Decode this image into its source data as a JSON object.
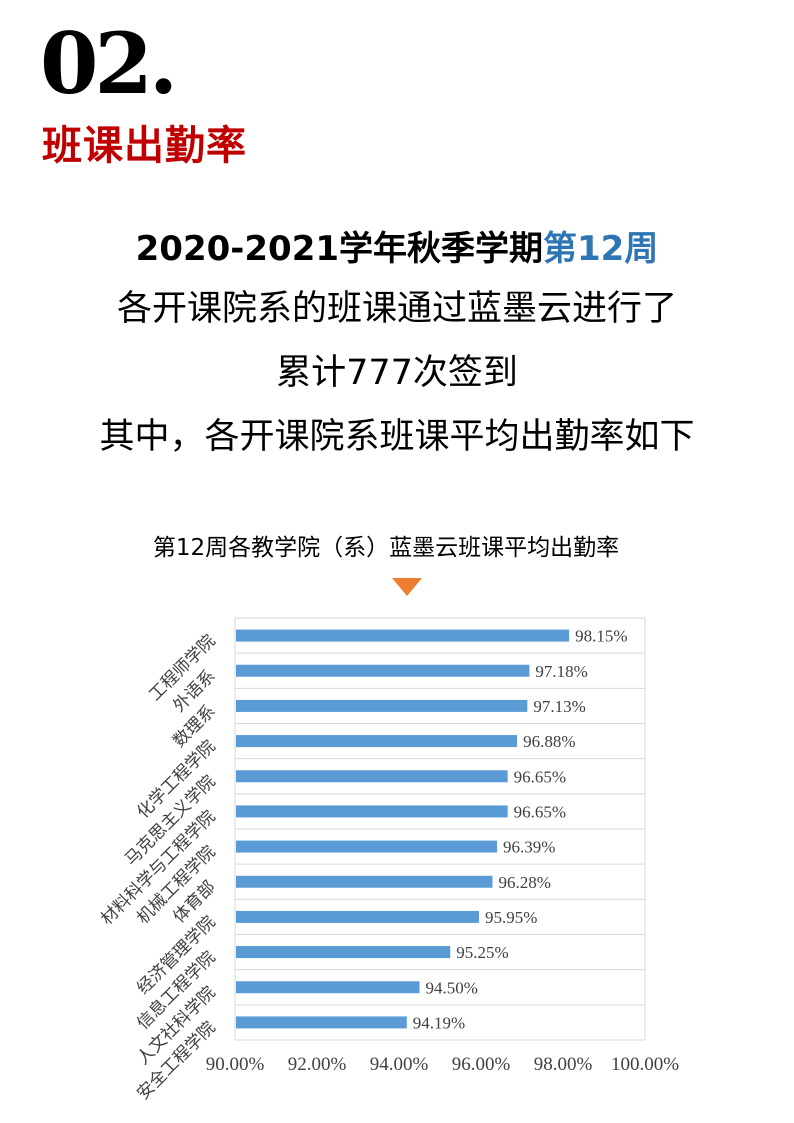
{
  "header": {
    "section_number": "02.",
    "section_title": "班课出勤率"
  },
  "intro": {
    "headline_prefix": "2020-2021学年秋季学期",
    "headline_accent": "第12周",
    "line1": "各开课院系的班课通过蓝墨云进行了",
    "line2": "累计777次签到",
    "line3": "其中，各开课院系班课平均出勤率如下"
  },
  "colors": {
    "accent_red": "#c00000",
    "accent_blue": "#2e75b6",
    "bar": "#5b9bd5",
    "pointer": "#ed7d31"
  },
  "chart_title": "第12周各教学院（系）蓝墨云班课平均出勤率",
  "chart_data": {
    "type": "bar",
    "orientation": "horizontal",
    "categories": [
      "工程师学院",
      "外语系",
      "数理系",
      "化学工程学院",
      "马克思主义学院",
      "材料科学与工程学院",
      "机械工程学院",
      "体育部",
      "经济管理学院",
      "信息工程学院",
      "人文社科学院",
      "安全工程学院"
    ],
    "values": [
      98.15,
      97.18,
      97.13,
      96.88,
      96.65,
      96.65,
      96.39,
      96.28,
      95.95,
      95.25,
      94.5,
      94.19
    ],
    "value_labels": [
      "98.15%",
      "97.18%",
      "97.13%",
      "96.88%",
      "96.65%",
      "96.65%",
      "96.39%",
      "96.28%",
      "95.95%",
      "95.25%",
      "94.50%",
      "94.19%"
    ],
    "xlim": [
      90,
      100
    ],
    "x_ticks": [
      "90.00%",
      "92.00%",
      "94.00%",
      "96.00%",
      "98.00%",
      "100.00%"
    ],
    "grid": true
  }
}
